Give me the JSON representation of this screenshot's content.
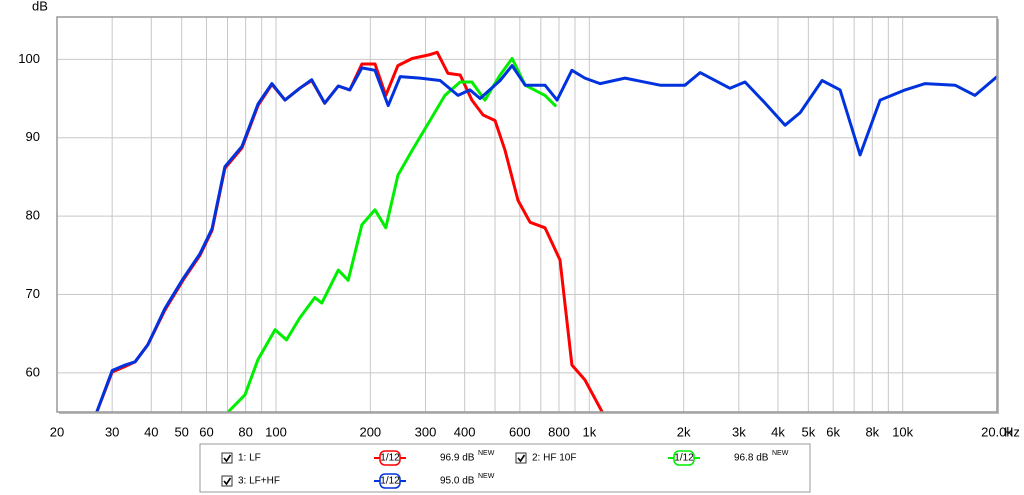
{
  "chart_data": {
    "type": "line",
    "xlabel": "Hz",
    "ylabel": "dB",
    "xscale": "log",
    "grid": true,
    "xlim": [
      20,
      20000
    ],
    "ylim": [
      55,
      105.4
    ],
    "xticks": [
      20,
      30,
      40,
      50,
      60,
      80,
      100,
      200,
      300,
      400,
      600,
      800,
      {
        "value": 1000,
        "label": "1k"
      },
      {
        "value": 2000,
        "label": "2k"
      },
      {
        "value": 3000,
        "label": "3k"
      },
      {
        "value": 4000,
        "label": "4k"
      },
      {
        "value": 5000,
        "label": "5k"
      },
      {
        "value": 6000,
        "label": "6k"
      },
      {
        "value": 8000,
        "label": "8k"
      },
      {
        "value": 10000,
        "label": "10k"
      },
      {
        "value": 20000,
        "label": "20.0k"
      }
    ],
    "xminorticks": [
      70,
      90,
      500,
      700,
      900,
      7000,
      9000
    ],
    "yticks": [
      60,
      70,
      80,
      90,
      100
    ],
    "series": [
      {
        "name": "1: LF",
        "color": "#ff0000",
        "smoothing": "1/12",
        "level": "96.9 dB",
        "badge": "NEW",
        "x": [
          26.8,
          30,
          33,
          35.5,
          39,
          44.2,
          50.5,
          57.2,
          62.5,
          68.7,
          77.9,
          87.6,
          97,
          106.8,
          119,
          130,
          143,
          158,
          172,
          188,
          207,
          224,
          245,
          272,
          310,
          327,
          354,
          387,
          422,
          458,
          500,
          538,
          592,
          647,
          722,
          806,
          880,
          968,
          1099
        ],
        "values": [
          55.0,
          60.1,
          60.8,
          61.4,
          63.6,
          68.0,
          71.8,
          75.0,
          78.2,
          86.1,
          88.7,
          94.1,
          96.8,
          94.8,
          96.3,
          97.3,
          94.4,
          96.6,
          96.1,
          99.4,
          99.4,
          95.4,
          99.2,
          100.1,
          100.6,
          100.9,
          98.2,
          98.0,
          94.8,
          92.9,
          92.2,
          88.4,
          82.0,
          79.2,
          78.5,
          74.4,
          61.0,
          59.1,
          55.0
        ]
      },
      {
        "name": "2: HF 10F",
        "color": "#00ee00",
        "smoothing": "1/12",
        "level": "96.8 dB",
        "badge": "NEW",
        "x": [
          70.3,
          79.6,
          87.6,
          99.3,
          108,
          119,
          133,
          140,
          158,
          170,
          188,
          207,
          224,
          245,
          272,
          310,
          346,
          387,
          422,
          464,
          519,
          567,
          624,
          722,
          778
        ],
        "values": [
          55.0,
          57.2,
          61.7,
          65.5,
          64.2,
          67.0,
          69.6,
          68.9,
          73.1,
          71.8,
          78.9,
          80.8,
          78.5,
          85.2,
          88.4,
          92.2,
          95.4,
          97.1,
          97.1,
          94.8,
          98.0,
          100.1,
          96.7,
          95.4,
          94.1
        ]
      },
      {
        "name": "3: LF+HF",
        "color": "#0033dd",
        "smoothing": "1/12",
        "level": "95.0 dB",
        "badge": "NEW",
        "x": [
          26.8,
          30,
          33,
          35.5,
          39,
          44.2,
          50.5,
          57.2,
          62.5,
          68.7,
          77.9,
          87.6,
          97,
          106.8,
          119,
          130,
          143,
          158,
          172,
          188,
          207,
          228,
          249,
          288,
          334,
          381,
          416,
          448,
          519,
          567,
          624,
          722,
          789,
          880,
          968,
          1082,
          1300,
          1682,
          2020,
          2256,
          2812,
          3140,
          3640,
          4216,
          4708,
          5532,
          6312,
          7312,
          8472,
          10180,
          11800,
          14700,
          17020,
          20000
        ],
        "values": [
          55.0,
          60.3,
          61.0,
          61.4,
          63.6,
          68.2,
          72.0,
          75.2,
          78.4,
          86.3,
          88.9,
          94.3,
          96.9,
          94.8,
          96.3,
          97.4,
          94.4,
          96.6,
          96.1,
          98.9,
          98.6,
          94.1,
          97.8,
          97.6,
          97.3,
          95.4,
          96.1,
          95.0,
          97.3,
          99.2,
          96.7,
          96.7,
          94.8,
          98.6,
          97.6,
          96.9,
          97.6,
          96.7,
          96.7,
          98.3,
          96.3,
          97.1,
          94.4,
          91.6,
          93.2,
          97.3,
          96.1,
          87.8,
          94.8,
          96.1,
          96.9,
          96.7,
          95.4,
          97.8
        ]
      }
    ]
  }
}
